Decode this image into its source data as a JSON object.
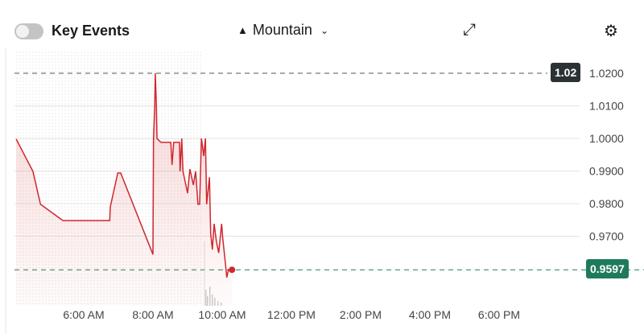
{
  "toolbar": {
    "key_events_label": "Key Events",
    "key_events_on": false,
    "timezone_label": "Mountain",
    "timezone_icon": "mountain-icon",
    "expand_icon": "expand-arrows-icon",
    "settings_icon": "gear-icon"
  },
  "colors": {
    "line": "#d0262d",
    "last_price_tag": "#1f7a5c",
    "high_tag": "#2a3234"
  },
  "chart_data": {
    "type": "area",
    "x_ticks": [
      "6:00 AM",
      "8:00 AM",
      "10:00 AM",
      "12:00 PM",
      "2:00 PM",
      "4:00 PM",
      "6:00 PM"
    ],
    "y_ticks": [
      "1.0200",
      "1.0100",
      "1.0000",
      "0.9900",
      "0.9800",
      "0.9700"
    ],
    "ylim": [
      0.955,
      1.023
    ],
    "grid": true,
    "high_marker": {
      "label": "1.02",
      "value": 1.02
    },
    "last_price": {
      "label": "0.9597",
      "value": 0.9597
    },
    "series": [
      {
        "x": [
          "04:03",
          "04:32",
          "04:45",
          "05:24",
          "06:45",
          "06:46",
          "06:59",
          "07:04",
          "08:00",
          "08:01",
          "08:03",
          "08:04",
          "08:06",
          "08:07",
          "08:14",
          "08:31",
          "08:33",
          "08:36",
          "08:46",
          "08:47",
          "08:50",
          "08:52",
          "09:00",
          "09:04",
          "09:10",
          "09:14",
          "09:18",
          "09:21",
          "09:24",
          "09:28",
          "09:31",
          "09:33",
          "09:38",
          "09:40",
          "09:43",
          "09:46",
          "09:50",
          "09:54",
          "09:59",
          "10:01",
          "10:06",
          "10:08",
          "10:11",
          "10:17"
        ],
        "y": [
          0.9998,
          0.9899,
          0.9798,
          0.9748,
          0.9748,
          0.979,
          0.9894,
          0.9894,
          0.9644,
          1.0,
          1.0099,
          1.02,
          1.0099,
          1.0,
          0.9988,
          0.9988,
          0.9919,
          0.9988,
          0.9988,
          0.9899,
          1.0,
          0.9899,
          0.9832,
          0.9906,
          0.9857,
          0.9899,
          0.9798,
          0.9798,
          1.0,
          0.9946,
          1.0,
          0.9798,
          0.9881,
          0.9709,
          0.9659,
          0.9738,
          0.9684,
          0.9649,
          0.9738,
          0.9694,
          0.961,
          0.9573,
          0.9598,
          0.9597
        ]
      }
    ]
  }
}
